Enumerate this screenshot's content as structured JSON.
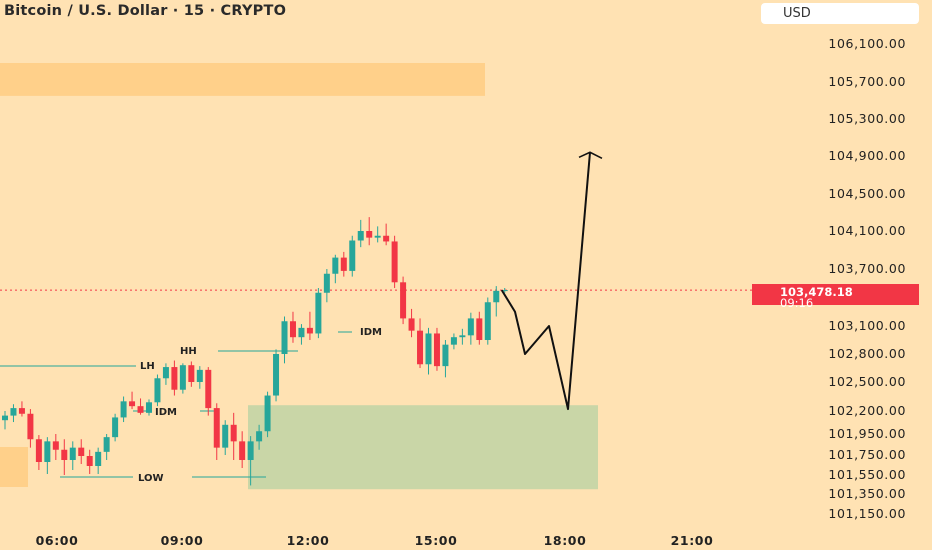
{
  "header": {
    "title": "Bitcoin / U.S. Dollar · 15 · CRYPTO",
    "currency": "USD"
  },
  "price_axis": {
    "ticks": [
      "106,100.00",
      "105,700.00",
      "105,300.00",
      "104,900.00",
      "104,500.00",
      "104,100.00",
      "103,700.00",
      "103,100.00",
      "102,800.00",
      "102,500.00",
      "102,200.00",
      "101,950.00",
      "101,750.00",
      "101,550.00",
      "101,350.00",
      "101,150.00"
    ]
  },
  "time_axis": {
    "ticks": [
      "06:00",
      "09:00",
      "12:00",
      "15:00",
      "18:00",
      "21:00"
    ]
  },
  "current_price": {
    "value": "103,478.18",
    "countdown": "09:16"
  },
  "annotations": {
    "hh": "HH",
    "lh": "LH",
    "idm_low": "IDM",
    "idm_high": "IDM",
    "low": "LOW"
  },
  "colors": {
    "up": "#26a69a",
    "down": "#f23645",
    "zone_supply": "#ffd08a",
    "zone_demand": "#c9d6a7",
    "arrow": "#111111"
  },
  "chart_data": {
    "type": "candlestick",
    "title": "Bitcoin / U.S. Dollar · 15 · CRYPTO",
    "interval": "15m",
    "y_ticks": [
      106100,
      105700,
      105300,
      104900,
      104500,
      104100,
      103700,
      103100,
      102800,
      102500,
      102200,
      101950,
      101750,
      101550,
      101350,
      101150
    ],
    "x_ticks": [
      "06:00",
      "09:00",
      "12:00",
      "15:00",
      "18:00",
      "21:00"
    ],
    "last_price": 103478.18,
    "candles": [
      [
        102100,
        102200,
        102000,
        102150
      ],
      [
        102150,
        102270,
        102080,
        102230
      ],
      [
        102230,
        102300,
        102140,
        102170
      ],
      [
        102170,
        102220,
        101820,
        101900
      ],
      [
        101900,
        101940,
        101600,
        101680
      ],
      [
        101680,
        101920,
        101560,
        101880
      ],
      [
        101880,
        101950,
        101700,
        101800
      ],
      [
        101800,
        101900,
        101550,
        101700
      ],
      [
        101700,
        101880,
        101600,
        101820
      ],
      [
        101820,
        101900,
        101660,
        101740
      ],
      [
        101740,
        101800,
        101560,
        101640
      ],
      [
        101640,
        101820,
        101560,
        101780
      ],
      [
        101780,
        101950,
        101700,
        101920
      ],
      [
        101920,
        102170,
        101880,
        102130
      ],
      [
        102130,
        102350,
        102080,
        102300
      ],
      [
        102300,
        102400,
        102220,
        102250
      ],
      [
        102250,
        102330,
        102160,
        102180
      ],
      [
        102180,
        102320,
        102150,
        102290
      ],
      [
        102290,
        102580,
        102250,
        102540
      ],
      [
        102540,
        102700,
        102470,
        102660
      ],
      [
        102660,
        102730,
        102360,
        102420
      ],
      [
        102420,
        102700,
        102380,
        102680
      ],
      [
        102680,
        102720,
        102450,
        102500
      ],
      [
        102500,
        102670,
        102430,
        102630
      ],
      [
        102630,
        102660,
        102150,
        102230
      ],
      [
        102230,
        102280,
        101700,
        101820
      ],
      [
        101820,
        102100,
        101750,
        102050
      ],
      [
        102050,
        102180,
        101700,
        101880
      ],
      [
        101880,
        101980,
        101620,
        101700
      ],
      [
        101700,
        101930,
        101440,
        101880
      ],
      [
        101880,
        102050,
        101800,
        101980
      ],
      [
        101980,
        102400,
        101920,
        102360
      ],
      [
        102360,
        102850,
        102300,
        102800
      ],
      [
        102800,
        103200,
        102700,
        103150
      ],
      [
        103150,
        103250,
        102920,
        102980
      ],
      [
        102980,
        103120,
        102900,
        103080
      ],
      [
        103080,
        103250,
        102950,
        103020
      ],
      [
        103020,
        103500,
        102970,
        103450
      ],
      [
        103450,
        103700,
        103350,
        103650
      ],
      [
        103650,
        103850,
        103550,
        103820
      ],
      [
        103820,
        103880,
        103620,
        103680
      ],
      [
        103680,
        104050,
        103620,
        104000
      ],
      [
        104000,
        104220,
        103930,
        104100
      ],
      [
        104100,
        104250,
        103950,
        104030
      ],
      [
        104030,
        104150,
        103980,
        104050
      ],
      [
        104050,
        104180,
        103950,
        103990
      ],
      [
        103990,
        104050,
        103500,
        103560
      ],
      [
        103560,
        103620,
        103120,
        103180
      ],
      [
        103180,
        103280,
        102980,
        103050
      ],
      [
        103050,
        103180,
        102650,
        102690
      ],
      [
        102690,
        103080,
        102580,
        103020
      ],
      [
        103020,
        103080,
        102620,
        102670
      ],
      [
        102670,
        102950,
        102550,
        102900
      ],
      [
        102900,
        103020,
        102850,
        102980
      ],
      [
        102980,
        103070,
        102900,
        103000
      ],
      [
        103000,
        103240,
        102900,
        103180
      ],
      [
        103180,
        103250,
        102900,
        102950
      ],
      [
        102950,
        103400,
        102900,
        103350
      ],
      [
        103350,
        103520,
        103200,
        103470
      ],
      [
        103470,
        103500,
        103450,
        103478
      ]
    ],
    "zones": [
      {
        "name": "supply",
        "y_range": [
          105550,
          105900
        ]
      },
      {
        "name": "demand",
        "y_range": [
          101400,
          102260
        ]
      }
    ],
    "projected_path": [
      103478,
      103250,
      102800,
      103100,
      102220,
      104940
    ]
  }
}
